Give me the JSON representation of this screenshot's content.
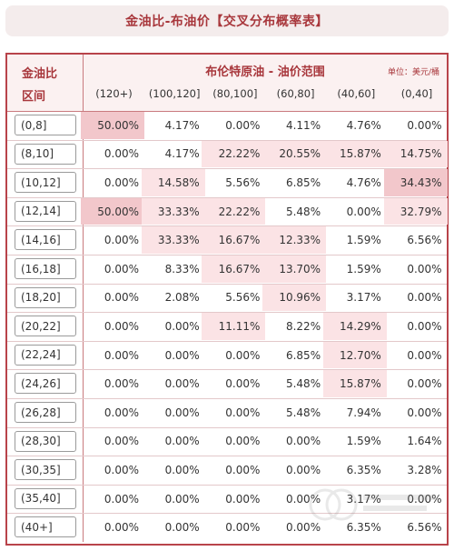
{
  "title": "金油比-布油价【交叉分布概率表】",
  "header": {
    "row_label_line1": "金油比",
    "row_label_line2": "区间",
    "group_title": "布伦特原油 - 油价范围",
    "unit": "单位：美元/桶"
  },
  "colors": {
    "accent": "#a8373c",
    "heat_strong": "#f2c7cb",
    "heat_light": "#fbe3e5",
    "header_bg": "#fbf1f1"
  },
  "chart_data": {
    "type": "table",
    "title": "金油比-布油价【交叉分布概率表】",
    "column_group": "布伦特原油 - 油价范围",
    "unit": "单位：美元/桶",
    "columns": [
      "(120+)",
      "(100,120]",
      "(80,100]",
      "(60,80]",
      "(40,60]",
      "(0,40]"
    ],
    "rows": [
      {
        "label": "(0,8]",
        "values": [
          "50.00%",
          "4.17%",
          "0.00%",
          "4.11%",
          "4.76%",
          "0.00%"
        ]
      },
      {
        "label": "(8,10]",
        "values": [
          "0.00%",
          "4.17%",
          "22.22%",
          "20.55%",
          "15.87%",
          "14.75%"
        ]
      },
      {
        "label": "(10,12]",
        "values": [
          "0.00%",
          "14.58%",
          "5.56%",
          "6.85%",
          "4.76%",
          "34.43%"
        ]
      },
      {
        "label": "(12,14]",
        "values": [
          "50.00%",
          "33.33%",
          "22.22%",
          "5.48%",
          "0.00%",
          "32.79%"
        ]
      },
      {
        "label": "(14,16]",
        "values": [
          "0.00%",
          "33.33%",
          "16.67%",
          "12.33%",
          "1.59%",
          "6.56%"
        ]
      },
      {
        "label": "(16,18]",
        "values": [
          "0.00%",
          "8.33%",
          "16.67%",
          "13.70%",
          "1.59%",
          "0.00%"
        ]
      },
      {
        "label": "(18,20]",
        "values": [
          "0.00%",
          "2.08%",
          "5.56%",
          "10.96%",
          "3.17%",
          "0.00%"
        ]
      },
      {
        "label": "(20,22]",
        "values": [
          "0.00%",
          "0.00%",
          "11.11%",
          "8.22%",
          "14.29%",
          "0.00%"
        ]
      },
      {
        "label": "(22,24]",
        "values": [
          "0.00%",
          "0.00%",
          "0.00%",
          "6.85%",
          "12.70%",
          "0.00%"
        ]
      },
      {
        "label": "(24,26]",
        "values": [
          "0.00%",
          "0.00%",
          "0.00%",
          "5.48%",
          "15.87%",
          "0.00%"
        ]
      },
      {
        "label": "(26,28]",
        "values": [
          "0.00%",
          "0.00%",
          "0.00%",
          "5.48%",
          "7.94%",
          "0.00%"
        ]
      },
      {
        "label": "(28,30]",
        "values": [
          "0.00%",
          "0.00%",
          "0.00%",
          "0.00%",
          "1.59%",
          "1.64%"
        ]
      },
      {
        "label": "(30,35]",
        "values": [
          "0.00%",
          "0.00%",
          "0.00%",
          "0.00%",
          "6.35%",
          "3.28%"
        ]
      },
      {
        "label": "(35,40]",
        "values": [
          "0.00%",
          "0.00%",
          "0.00%",
          "0.00%",
          "3.17%",
          "0.00%"
        ]
      },
      {
        "label": "(40+]",
        "values": [
          "0.00%",
          "0.00%",
          "0.00%",
          "0.00%",
          "6.35%",
          "6.56%"
        ]
      }
    ],
    "highlight": [
      [
        2,
        0,
        0,
        0,
        0,
        0
      ],
      [
        0,
        0,
        1,
        1,
        1,
        1
      ],
      [
        0,
        1,
        0,
        0,
        0,
        2
      ],
      [
        2,
        1,
        1,
        0,
        0,
        1
      ],
      [
        0,
        1,
        1,
        1,
        0,
        0
      ],
      [
        0,
        0,
        1,
        1,
        0,
        0
      ],
      [
        0,
        0,
        0,
        1,
        0,
        0
      ],
      [
        0,
        0,
        1,
        0,
        1,
        0
      ],
      [
        0,
        0,
        0,
        0,
        1,
        0
      ],
      [
        0,
        0,
        0,
        0,
        1,
        0
      ],
      [
        0,
        0,
        0,
        0,
        0,
        0
      ],
      [
        0,
        0,
        0,
        0,
        0,
        0
      ],
      [
        0,
        0,
        0,
        0,
        0,
        0
      ],
      [
        0,
        0,
        0,
        0,
        0,
        0
      ],
      [
        0,
        0,
        0,
        0,
        0,
        0
      ]
    ]
  }
}
